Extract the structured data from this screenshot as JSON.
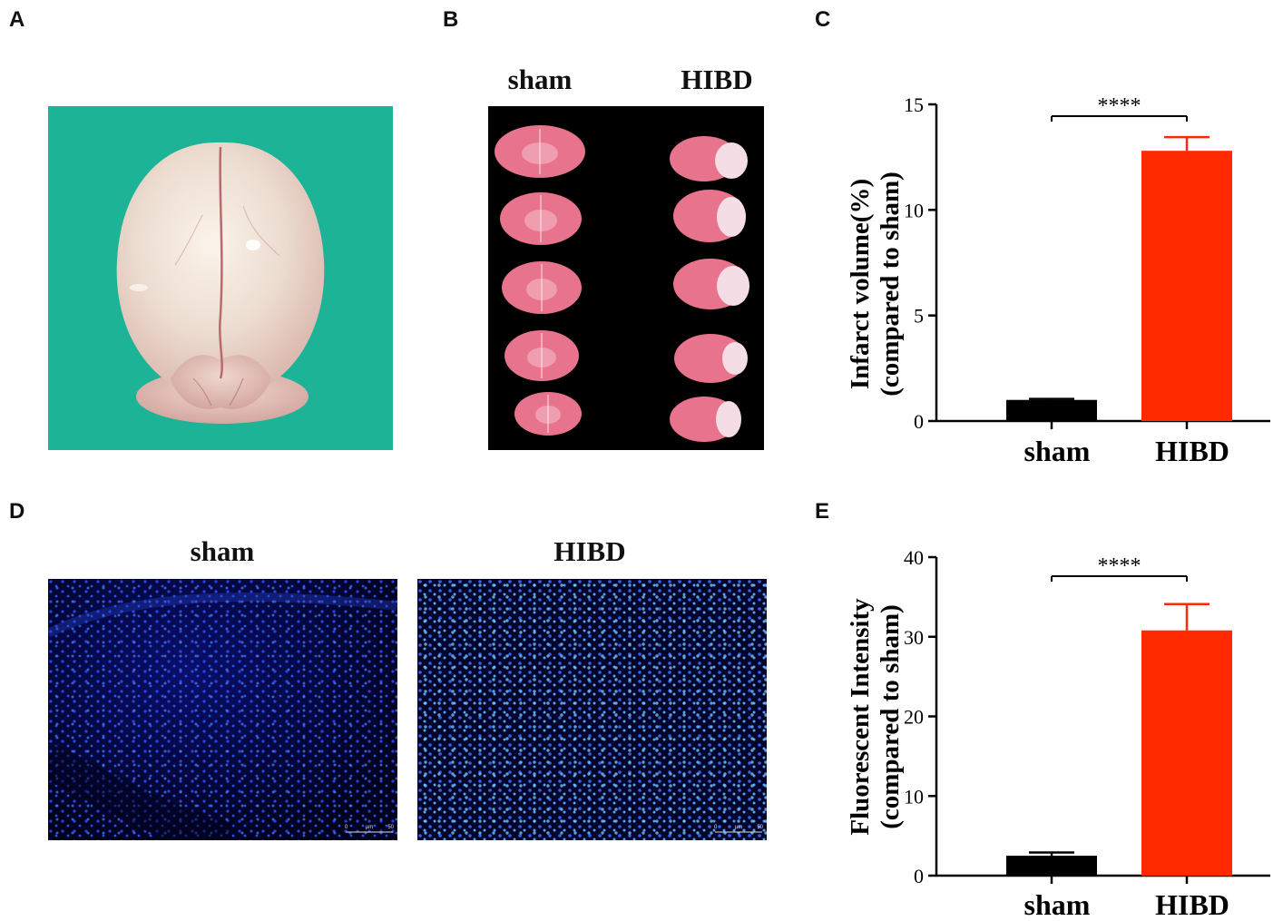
{
  "panels": {
    "A": {
      "letter": "A"
    },
    "B": {
      "letter": "B",
      "label_left": "sham",
      "label_right": "HIBD"
    },
    "C": {
      "letter": "C"
    },
    "D": {
      "letter": "D",
      "label_left": "sham",
      "label_right": "HIBD",
      "scale_label_start": "0",
      "scale_label_unit": "µm",
      "scale_label_end": "50"
    },
    "E": {
      "letter": "E"
    }
  },
  "colors": {
    "sham_bar": "#000000",
    "hibd_bar": "#ff2a00",
    "photo_bg": "#1fb89a",
    "section_bg": "#000000",
    "fluor_bg": "#02021e"
  },
  "chart_data": [
    {
      "panel": "C",
      "type": "bar",
      "categories": [
        "sham",
        "HIBD"
      ],
      "values": [
        1.0,
        12.8
      ],
      "error": [
        0.05,
        0.65
      ],
      "colors": [
        "#000000",
        "#ff2a00"
      ],
      "ylabel_line1": "Infarct volume(%)",
      "ylabel_line2": "(compared to sham)",
      "ylim": [
        0,
        15
      ],
      "yticks": [
        0,
        5,
        10,
        15
      ],
      "significance": "****"
    },
    {
      "panel": "E",
      "type": "bar",
      "categories": [
        "sham",
        "HIBD"
      ],
      "values": [
        2.5,
        30.8
      ],
      "error": [
        0.4,
        3.3
      ],
      "colors": [
        "#000000",
        "#ff2a00"
      ],
      "ylabel_line1": "Fluorescent Intensity",
      "ylabel_line2": "(compared to sham)",
      "ylim": [
        0,
        40
      ],
      "yticks": [
        0,
        10,
        20,
        30,
        40
      ],
      "significance": "****"
    }
  ]
}
